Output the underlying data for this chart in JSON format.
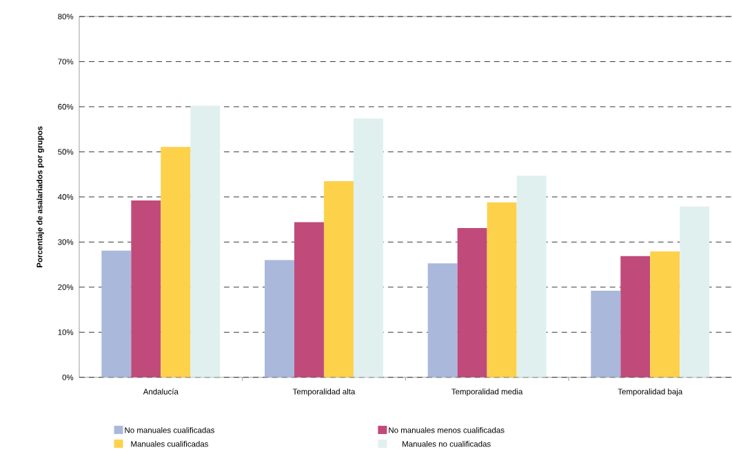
{
  "chart_data": {
    "type": "bar",
    "ylabel": "Porcentaje de asalariados por grupos",
    "categories": [
      "Andalucía",
      "Temporalidad alta",
      "Temporalidad media",
      "Temporalidad baja"
    ],
    "series": [
      {
        "name": "No manuales cualificadas",
        "color": "#aab8dc",
        "values": [
          28.1,
          26.0,
          25.3,
          19.2
        ]
      },
      {
        "name": "No manuales menos cualificadas",
        "color": "#c04b7a",
        "values": [
          39.2,
          34.4,
          33.1,
          26.9
        ]
      },
      {
        "name": "Manuales cualificadas",
        "color": "#fdd14a",
        "values": [
          51.1,
          43.5,
          38.8,
          27.9
        ]
      },
      {
        "name": "Manuales no cualificadas",
        "color": "#e0f0ef",
        "values": [
          60.2,
          57.4,
          44.7,
          37.9
        ]
      }
    ],
    "ylim": [
      0,
      80
    ],
    "yticks": [
      {
        "value": 0,
        "label": "0%"
      },
      {
        "value": 10,
        "label": "10%"
      },
      {
        "value": 20,
        "label": "20%"
      },
      {
        "value": 30,
        "label": "30%"
      },
      {
        "value": 40,
        "label": "40%"
      },
      {
        "value": 50,
        "label": "50%"
      },
      {
        "value": 60,
        "label": "60%"
      },
      {
        "value": 70,
        "label": "70%"
      },
      {
        "value": 80,
        "label": "80%"
      }
    ],
    "grid": "y",
    "legend": "bottom"
  }
}
